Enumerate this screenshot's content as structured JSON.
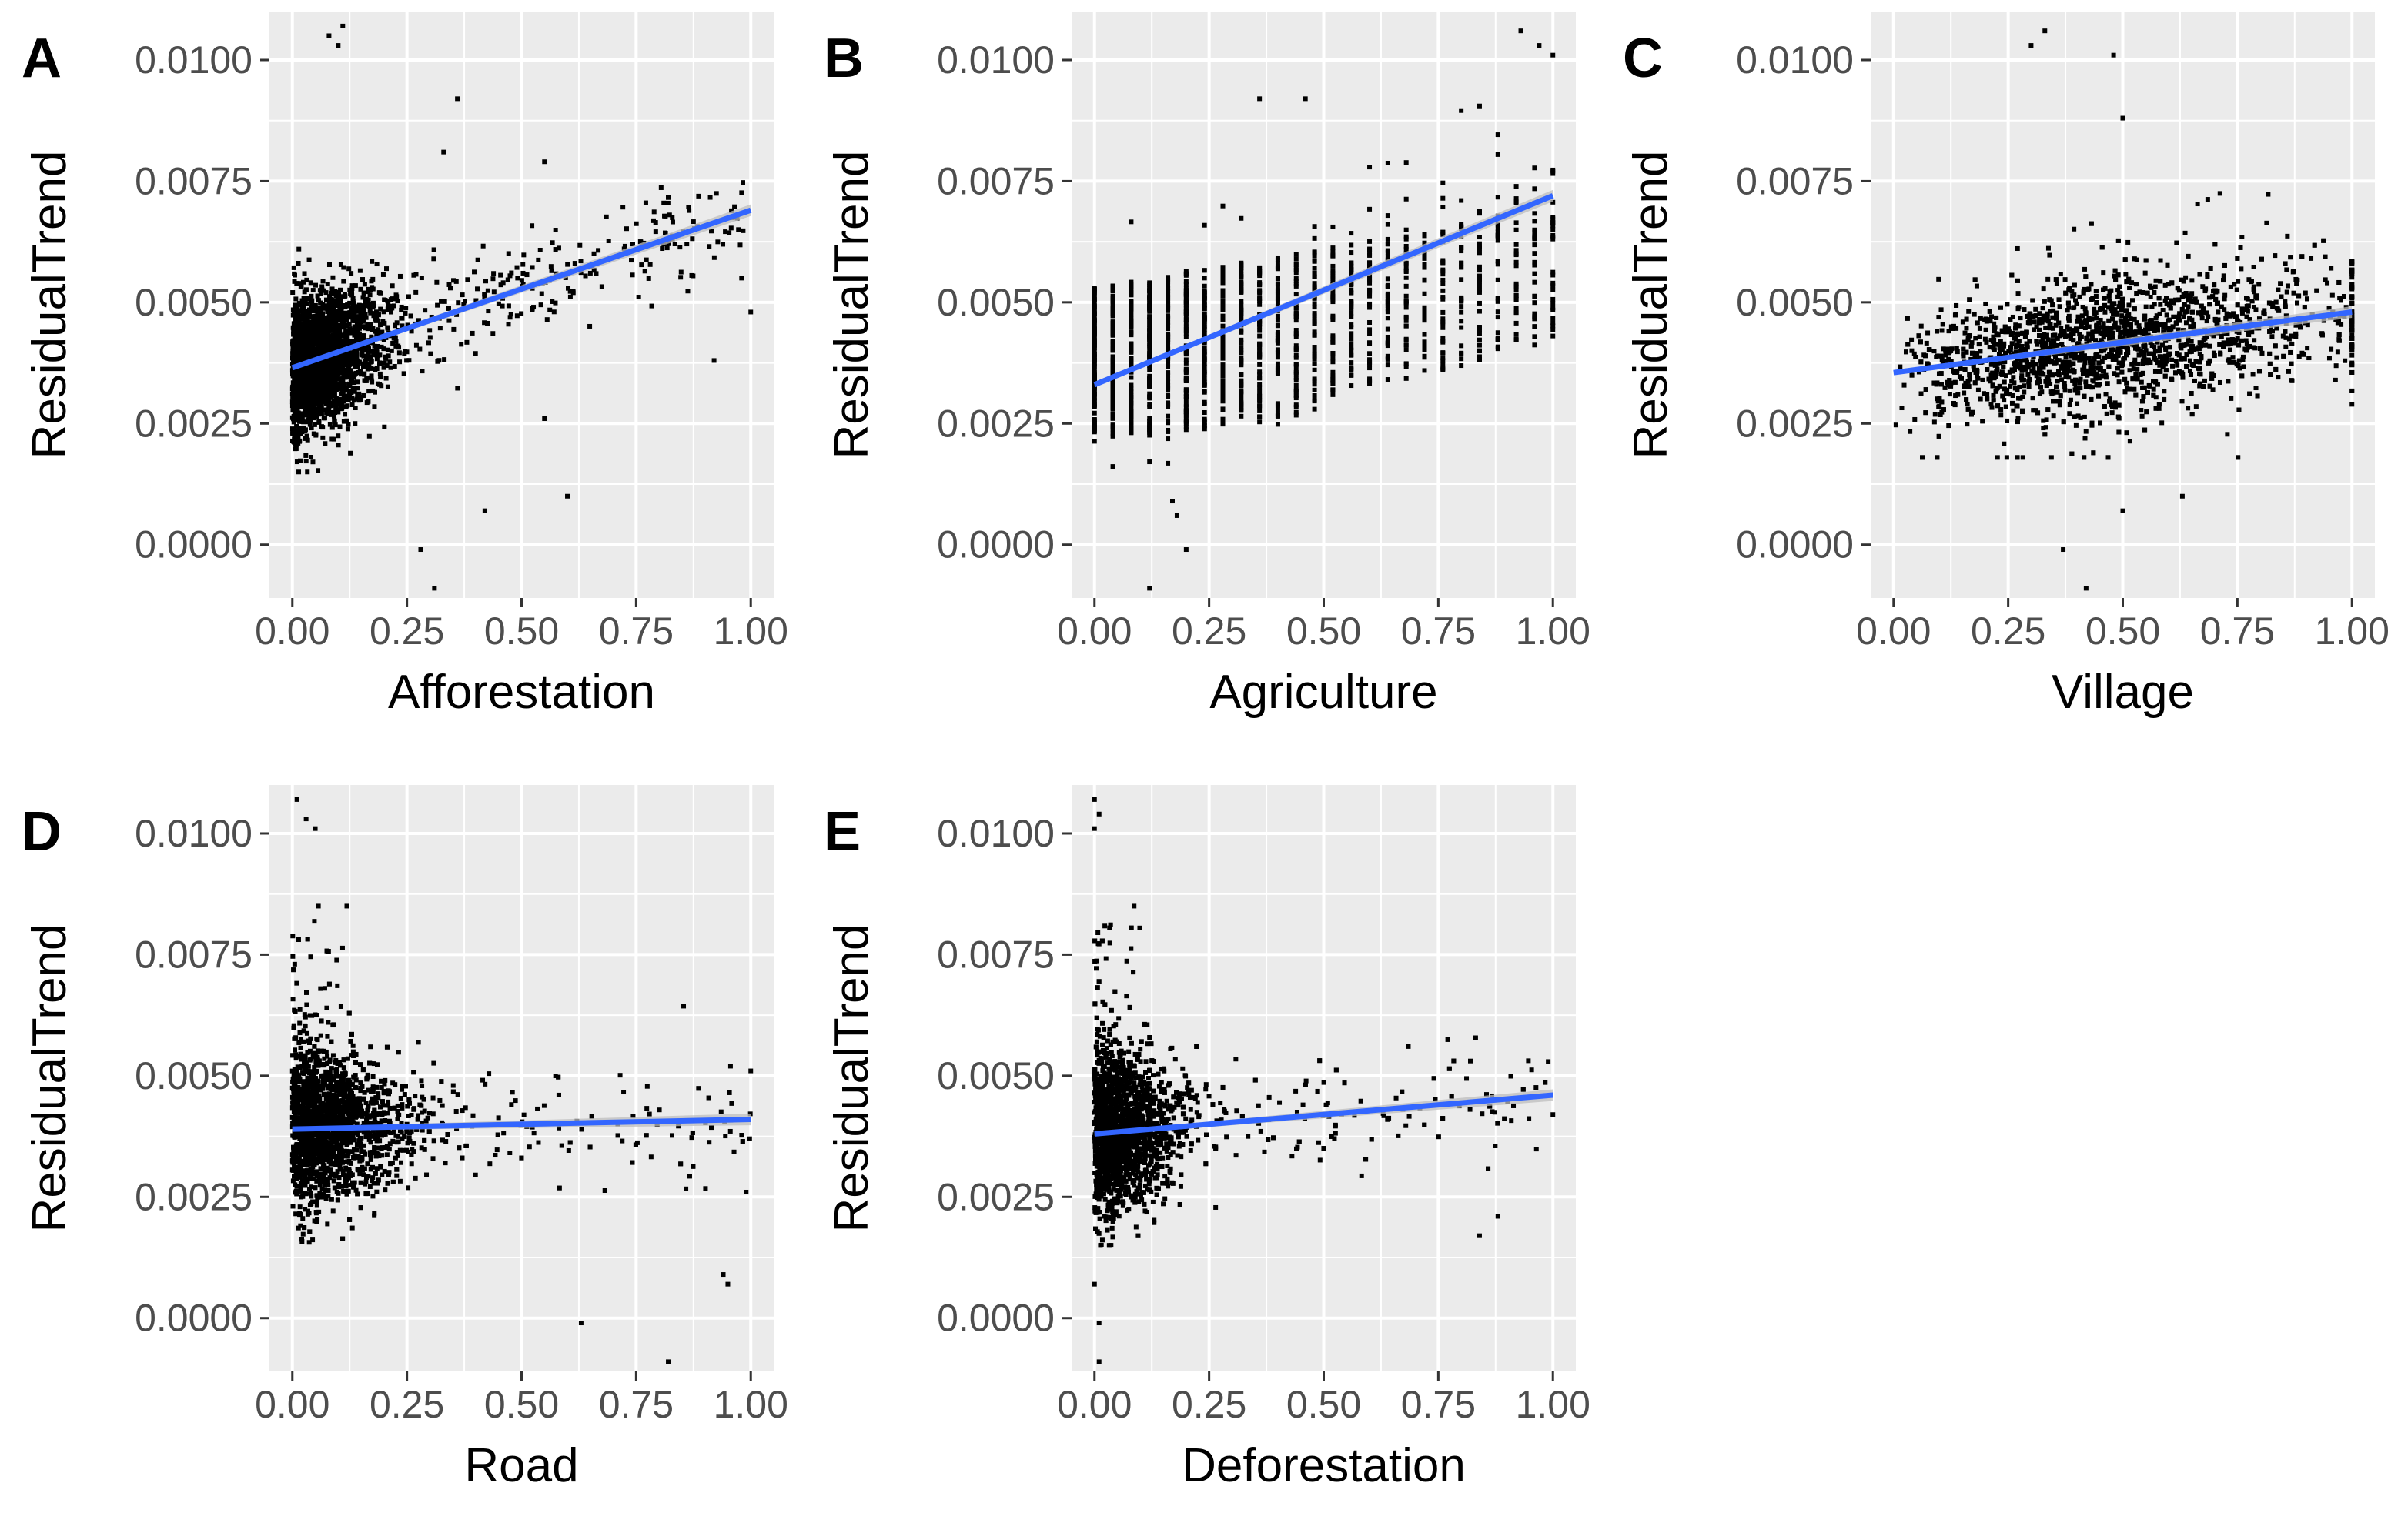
{
  "figure": {
    "y_axis_label": "ResidualTrend",
    "colors": {
      "panel_bg": "#ebebeb",
      "grid": "#ffffff",
      "point": "#000000",
      "fit_line": "#3366ff",
      "ci_band": "#bdbdbd",
      "tick_text": "#4d4d4d",
      "tick_mark": "#333333"
    }
  },
  "chart_data": [
    {
      "type": "scatter",
      "panel_label": "A",
      "xlabel": "Afforestation",
      "ylabel": "ResidualTrend",
      "xlim": [
        -0.05,
        1.05
      ],
      "ylim": [
        -0.0011,
        0.011
      ],
      "x_ticks": [
        "0.00",
        "0.25",
        "0.50",
        "0.75",
        "1.00"
      ],
      "y_ticks": [
        "0.0000",
        "0.0025",
        "0.0050",
        "0.0075",
        "0.0100"
      ],
      "distribution": "dense cluster near x=0, sparse points spreading to x=1",
      "fit": {
        "x": [
          0,
          1
        ],
        "y": [
          0.00365,
          0.0069
        ]
      },
      "notable_points": [
        [
          0.08,
          0.0105
        ],
        [
          0.1,
          0.0103
        ],
        [
          0.11,
          0.0107
        ],
        [
          0.36,
          0.0092
        ],
        [
          0.33,
          0.0081
        ],
        [
          0.55,
          0.0079
        ],
        [
          0.28,
          -0.0001
        ],
        [
          0.31,
          -0.0009
        ],
        [
          0.42,
          0.0007
        ],
        [
          0.6,
          0.001
        ],
        [
          0.55,
          0.0026
        ],
        [
          0.92,
          0.0038
        ],
        [
          0.98,
          0.0055
        ],
        [
          1.0,
          0.0048
        ]
      ]
    },
    {
      "type": "scatter",
      "panel_label": "B",
      "xlabel": "Agriculture",
      "ylabel": "ResidualTrend",
      "xlim": [
        -0.05,
        1.05
      ],
      "ylim": [
        -0.0011,
        0.011
      ],
      "x_ticks": [
        "0.00",
        "0.25",
        "0.50",
        "0.75",
        "1.00"
      ],
      "y_ticks": [
        "0.0000",
        "0.0025",
        "0.0050",
        "0.0075",
        "0.0100"
      ],
      "distribution": "discrete x values in steps of 0.04 forming vertical point columns",
      "fit": {
        "x": [
          0,
          1
        ],
        "y": [
          0.0033,
          0.0072
        ]
      },
      "notable_points": [
        [
          0.93,
          0.0106
        ],
        [
          0.97,
          0.0103
        ],
        [
          1.0,
          0.0101
        ],
        [
          0.36,
          0.0092
        ],
        [
          0.46,
          0.0092
        ],
        [
          0.12,
          -0.0009
        ],
        [
          0.2,
          -0.0001
        ],
        [
          0.17,
          0.0009
        ],
        [
          0.18,
          0.0006
        ]
      ]
    },
    {
      "type": "scatter",
      "panel_label": "C",
      "xlabel": "Village",
      "ylabel": "ResidualTrend",
      "xlim": [
        -0.05,
        1.05
      ],
      "ylim": [
        -0.0011,
        0.011
      ],
      "x_ticks": [
        "0.00",
        "0.25",
        "0.50",
        "0.75",
        "1.00"
      ],
      "y_ticks": [
        "0.0000",
        "0.0025",
        "0.0050",
        "0.0075",
        "0.0100"
      ],
      "distribution": "broad band of points across the full x range",
      "fit": {
        "x": [
          0,
          1
        ],
        "y": [
          0.00355,
          0.0048
        ]
      },
      "notable_points": [
        [
          0.33,
          0.0106
        ],
        [
          0.3,
          0.0103
        ],
        [
          0.48,
          0.0101
        ],
        [
          0.37,
          -0.0001
        ],
        [
          0.42,
          -0.0009
        ],
        [
          0.5,
          0.0007
        ],
        [
          0.63,
          0.001
        ],
        [
          0.5,
          0.0088
        ]
      ]
    },
    {
      "type": "scatter",
      "panel_label": "D",
      "xlabel": "Road",
      "ylabel": "ResidualTrend",
      "xlim": [
        -0.05,
        1.05
      ],
      "ylim": [
        -0.0011,
        0.011
      ],
      "x_ticks": [
        "0.00",
        "0.25",
        "0.50",
        "0.75",
        "1.00"
      ],
      "y_ticks": [
        "0.0000",
        "0.0025",
        "0.0050",
        "0.0075",
        "0.0100"
      ],
      "distribution": "dense cluster near x=0 thinning toward x=1",
      "fit": {
        "x": [
          0,
          1
        ],
        "y": [
          0.0039,
          0.0041
        ]
      },
      "notable_points": [
        [
          0.01,
          0.0107
        ],
        [
          0.03,
          0.0103
        ],
        [
          0.05,
          0.0101
        ],
        [
          0.63,
          -0.0001
        ],
        [
          0.82,
          -0.0009
        ],
        [
          0.94,
          0.0009
        ],
        [
          0.95,
          0.0007
        ],
        [
          0.99,
          0.0026
        ],
        [
          1.0,
          0.0051
        ]
      ]
    },
    {
      "type": "scatter",
      "panel_label": "E",
      "xlabel": "Deforestation",
      "ylabel": "ResidualTrend",
      "xlim": [
        -0.05,
        1.05
      ],
      "ylim": [
        -0.0011,
        0.011
      ],
      "x_ticks": [
        "0.00",
        "0.25",
        "0.50",
        "0.75",
        "1.00"
      ],
      "y_ticks": [
        "0.0000",
        "0.0025",
        "0.0050",
        "0.0075",
        "0.0100"
      ],
      "distribution": "dense cluster near x=0 thinning toward x=1",
      "fit": {
        "x": [
          0,
          1
        ],
        "y": [
          0.0038,
          0.0046
        ]
      },
      "notable_points": [
        [
          0.0,
          0.0107
        ],
        [
          0.01,
          0.0104
        ],
        [
          0.0,
          0.0101
        ],
        [
          0.01,
          -0.0009
        ],
        [
          0.0,
          0.0007
        ],
        [
          0.01,
          -0.0001
        ],
        [
          0.84,
          0.0017
        ],
        [
          0.88,
          0.0021
        ],
        [
          1.0,
          0.0042
        ]
      ]
    }
  ]
}
